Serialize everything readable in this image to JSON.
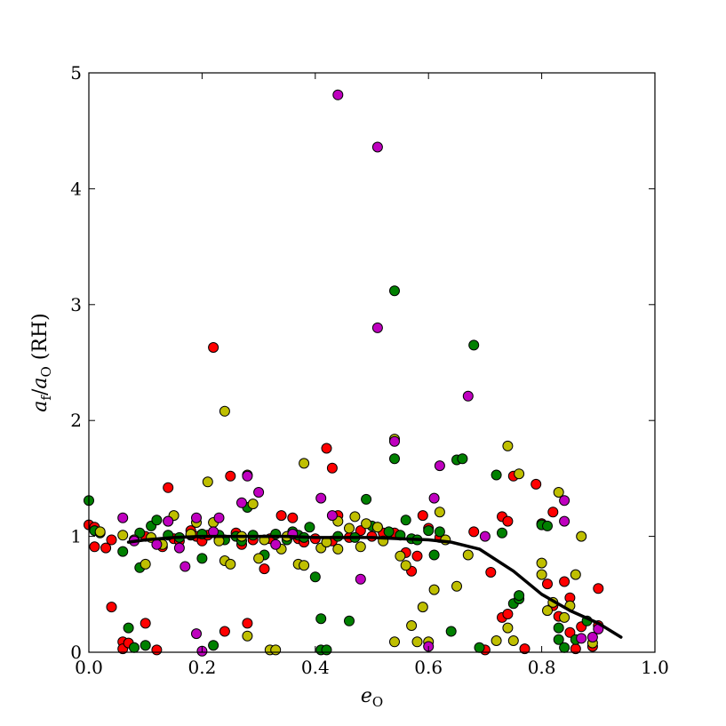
{
  "chart_data": {
    "type": "scatter",
    "xlabel": {
      "main": "e",
      "sub": "O"
    },
    "ylabel": {
      "a": "a",
      "a_sub": "f",
      "sep": "/",
      "b": "a",
      "b_sub": "O",
      "unit": " (RH)"
    },
    "xlim": [
      0,
      1
    ],
    "ylim": [
      0,
      5
    ],
    "x_ticks": [
      "0.0",
      "0.2",
      "0.4",
      "0.6",
      "0.8",
      "1.0"
    ],
    "y_ticks": [
      "0",
      "1",
      "2",
      "3",
      "4",
      "5"
    ],
    "grid": false,
    "legend": "none",
    "colors": {
      "red": "#ff0000",
      "green": "#008000",
      "yellow": "#bfbf00",
      "magenta": "#bf00bf",
      "line": "#000000",
      "edge": "#000000"
    },
    "series": [
      {
        "color": "red",
        "points": [
          [
            0.0,
            1.1
          ],
          [
            0.01,
            1.08
          ],
          [
            0.01,
            0.91
          ],
          [
            0.03,
            0.9
          ],
          [
            0.04,
            0.97
          ],
          [
            0.04,
            0.39
          ],
          [
            0.06,
            0.09
          ],
          [
            0.06,
            0.03
          ],
          [
            0.07,
            0.08
          ],
          [
            0.08,
            0.97
          ],
          [
            0.1,
            0.25
          ],
          [
            0.1,
            1.0
          ],
          [
            0.12,
            0.02
          ],
          [
            0.13,
            0.91
          ],
          [
            0.14,
            1.42
          ],
          [
            0.15,
            0.98
          ],
          [
            0.16,
            0.96
          ],
          [
            0.18,
            1.05
          ],
          [
            0.19,
            1.0
          ],
          [
            0.2,
            0.96
          ],
          [
            0.21,
            1.01
          ],
          [
            0.22,
            2.63
          ],
          [
            0.23,
            0.97
          ],
          [
            0.24,
            0.18
          ],
          [
            0.25,
            1.52
          ],
          [
            0.26,
            1.03
          ],
          [
            0.27,
            0.93
          ],
          [
            0.28,
            0.25
          ],
          [
            0.29,
            0.97
          ],
          [
            0.31,
            0.72
          ],
          [
            0.32,
            0.98
          ],
          [
            0.34,
            1.18
          ],
          [
            0.36,
            1.16
          ],
          [
            0.37,
            0.98
          ],
          [
            0.38,
            0.95
          ],
          [
            0.4,
            0.98
          ],
          [
            0.42,
            1.76
          ],
          [
            0.43,
            1.59
          ],
          [
            0.43,
            0.96
          ],
          [
            0.44,
            1.18
          ],
          [
            0.46,
            0.99
          ],
          [
            0.48,
            1.05
          ],
          [
            0.5,
            1.0
          ],
          [
            0.52,
            1.03
          ],
          [
            0.54,
            1.03
          ],
          [
            0.56,
            0.86
          ],
          [
            0.57,
            0.7
          ],
          [
            0.58,
            0.83
          ],
          [
            0.59,
            1.18
          ],
          [
            0.6,
            1.07
          ],
          [
            0.62,
            0.99
          ],
          [
            0.68,
            1.04
          ],
          [
            0.7,
            0.02
          ],
          [
            0.71,
            0.69
          ],
          [
            0.73,
            1.17
          ],
          [
            0.73,
            0.3
          ],
          [
            0.74,
            0.33
          ],
          [
            0.74,
            1.13
          ],
          [
            0.75,
            1.52
          ],
          [
            0.77,
            0.03
          ],
          [
            0.79,
            1.45
          ],
          [
            0.8,
            1.11
          ],
          [
            0.81,
            0.59
          ],
          [
            0.82,
            1.21
          ],
          [
            0.82,
            0.4
          ],
          [
            0.83,
            0.31
          ],
          [
            0.84,
            0.61
          ],
          [
            0.85,
            0.47
          ],
          [
            0.85,
            0.17
          ],
          [
            0.86,
            0.03
          ],
          [
            0.87,
            0.22
          ],
          [
            0.89,
            0.05
          ],
          [
            0.9,
            0.55
          ],
          [
            0.9,
            0.23
          ]
        ]
      },
      {
        "color": "green",
        "points": [
          [
            0.0,
            1.31
          ],
          [
            0.01,
            1.05
          ],
          [
            0.02,
            1.03
          ],
          [
            0.06,
            0.87
          ],
          [
            0.07,
            0.21
          ],
          [
            0.08,
            0.04
          ],
          [
            0.09,
            0.73
          ],
          [
            0.09,
            1.03
          ],
          [
            0.1,
            0.06
          ],
          [
            0.11,
            1.09
          ],
          [
            0.12,
            1.14
          ],
          [
            0.14,
            1.01
          ],
          [
            0.16,
            0.99
          ],
          [
            0.18,
            1.01
          ],
          [
            0.2,
            0.81
          ],
          [
            0.2,
            1.02
          ],
          [
            0.22,
            0.06
          ],
          [
            0.23,
            1.01
          ],
          [
            0.24,
            0.97
          ],
          [
            0.26,
            1.0
          ],
          [
            0.27,
            0.96
          ],
          [
            0.28,
            1.25
          ],
          [
            0.29,
            1.01
          ],
          [
            0.31,
            0.84
          ],
          [
            0.33,
            1.02
          ],
          [
            0.35,
            0.97
          ],
          [
            0.36,
            1.04
          ],
          [
            0.37,
            1.01
          ],
          [
            0.38,
            0.99
          ],
          [
            0.39,
            1.08
          ],
          [
            0.4,
            0.65
          ],
          [
            0.41,
            0.02
          ],
          [
            0.41,
            0.29
          ],
          [
            0.42,
            0.02
          ],
          [
            0.44,
            1.0
          ],
          [
            0.46,
            0.27
          ],
          [
            0.47,
            0.99
          ],
          [
            0.49,
            1.32
          ],
          [
            0.5,
            1.09
          ],
          [
            0.51,
            1.08
          ],
          [
            0.53,
            1.04
          ],
          [
            0.54,
            3.12
          ],
          [
            0.54,
            1.67
          ],
          [
            0.55,
            1.01
          ],
          [
            0.56,
            1.14
          ],
          [
            0.57,
            0.98
          ],
          [
            0.58,
            0.97
          ],
          [
            0.6,
            1.05
          ],
          [
            0.61,
            0.84
          ],
          [
            0.62,
            1.04
          ],
          [
            0.64,
            0.18
          ],
          [
            0.65,
            1.66
          ],
          [
            0.66,
            1.67
          ],
          [
            0.68,
            2.65
          ],
          [
            0.69,
            0.04
          ],
          [
            0.72,
            1.53
          ],
          [
            0.73,
            1.03
          ],
          [
            0.75,
            0.42
          ],
          [
            0.76,
            0.46
          ],
          [
            0.76,
            0.49
          ],
          [
            0.8,
            1.1
          ],
          [
            0.81,
            1.09
          ],
          [
            0.83,
            0.21
          ],
          [
            0.83,
            0.11
          ],
          [
            0.84,
            0.04
          ],
          [
            0.86,
            0.11
          ],
          [
            0.88,
            0.27
          ]
        ]
      },
      {
        "color": "yellow",
        "points": [
          [
            0.02,
            1.04
          ],
          [
            0.06,
            1.01
          ],
          [
            0.08,
            0.97
          ],
          [
            0.1,
            0.76
          ],
          [
            0.11,
            0.99
          ],
          [
            0.13,
            0.93
          ],
          [
            0.14,
            1.13
          ],
          [
            0.15,
            1.18
          ],
          [
            0.18,
            1.02
          ],
          [
            0.19,
            1.12
          ],
          [
            0.21,
            1.47
          ],
          [
            0.22,
            1.12
          ],
          [
            0.23,
            0.96
          ],
          [
            0.24,
            0.79
          ],
          [
            0.24,
            2.08
          ],
          [
            0.25,
            0.76
          ],
          [
            0.27,
            1.0
          ],
          [
            0.28,
            0.14
          ],
          [
            0.28,
            1.53
          ],
          [
            0.29,
            1.28
          ],
          [
            0.3,
            0.81
          ],
          [
            0.31,
            0.97
          ],
          [
            0.32,
            0.02
          ],
          [
            0.33,
            0.02
          ],
          [
            0.34,
            0.89
          ],
          [
            0.35,
            1.0
          ],
          [
            0.37,
            0.76
          ],
          [
            0.38,
            0.75
          ],
          [
            0.38,
            1.63
          ],
          [
            0.41,
            0.9
          ],
          [
            0.42,
            0.95
          ],
          [
            0.44,
            1.13
          ],
          [
            0.44,
            0.89
          ],
          [
            0.46,
            1.07
          ],
          [
            0.47,
            1.17
          ],
          [
            0.48,
            0.91
          ],
          [
            0.49,
            1.11
          ],
          [
            0.51,
            1.08
          ],
          [
            0.52,
            0.96
          ],
          [
            0.54,
            0.09
          ],
          [
            0.54,
            1.84
          ],
          [
            0.55,
            0.83
          ],
          [
            0.56,
            0.75
          ],
          [
            0.57,
            0.23
          ],
          [
            0.58,
            0.09
          ],
          [
            0.59,
            0.39
          ],
          [
            0.6,
            0.09
          ],
          [
            0.61,
            0.54
          ],
          [
            0.62,
            1.21
          ],
          [
            0.63,
            0.97
          ],
          [
            0.65,
            0.57
          ],
          [
            0.67,
            0.84
          ],
          [
            0.72,
            0.1
          ],
          [
            0.74,
            1.78
          ],
          [
            0.74,
            0.21
          ],
          [
            0.75,
            0.1
          ],
          [
            0.76,
            1.54
          ],
          [
            0.8,
            0.77
          ],
          [
            0.8,
            0.67
          ],
          [
            0.81,
            0.36
          ],
          [
            0.82,
            0.43
          ],
          [
            0.83,
            1.38
          ],
          [
            0.84,
            0.3
          ],
          [
            0.85,
            0.4
          ],
          [
            0.86,
            0.67
          ],
          [
            0.87,
            1.0
          ],
          [
            0.89,
            0.08
          ]
        ]
      },
      {
        "color": "magenta",
        "points": [
          [
            0.06,
            1.16
          ],
          [
            0.08,
            0.96
          ],
          [
            0.12,
            0.93
          ],
          [
            0.14,
            1.13
          ],
          [
            0.16,
            0.9
          ],
          [
            0.17,
            0.74
          ],
          [
            0.19,
            1.16
          ],
          [
            0.19,
            0.16
          ],
          [
            0.2,
            0.01
          ],
          [
            0.22,
            1.04
          ],
          [
            0.23,
            1.16
          ],
          [
            0.27,
            1.29
          ],
          [
            0.28,
            1.52
          ],
          [
            0.3,
            1.38
          ],
          [
            0.33,
            0.93
          ],
          [
            0.36,
            1.02
          ],
          [
            0.41,
            1.33
          ],
          [
            0.43,
            1.18
          ],
          [
            0.44,
            4.81
          ],
          [
            0.48,
            0.63
          ],
          [
            0.51,
            2.8
          ],
          [
            0.51,
            4.36
          ],
          [
            0.54,
            1.82
          ],
          [
            0.6,
            0.05
          ],
          [
            0.61,
            1.33
          ],
          [
            0.62,
            1.61
          ],
          [
            0.67,
            2.21
          ],
          [
            0.7,
            1.0
          ],
          [
            0.84,
            1.31
          ],
          [
            0.84,
            1.13
          ],
          [
            0.87,
            0.12
          ],
          [
            0.89,
            0.13
          ],
          [
            0.9,
            0.2
          ]
        ]
      }
    ],
    "line": {
      "x": [
        0.07,
        0.1,
        0.15,
        0.2,
        0.25,
        0.3,
        0.35,
        0.4,
        0.45,
        0.5,
        0.55,
        0.6,
        0.64,
        0.69,
        0.75,
        0.8,
        0.85,
        0.9,
        0.94
      ],
      "y": [
        0.95,
        0.97,
        0.99,
        1.0,
        1.0,
        1.0,
        1.0,
        0.99,
        0.99,
        0.99,
        0.98,
        0.97,
        0.95,
        0.89,
        0.7,
        0.5,
        0.36,
        0.25,
        0.13
      ]
    }
  }
}
